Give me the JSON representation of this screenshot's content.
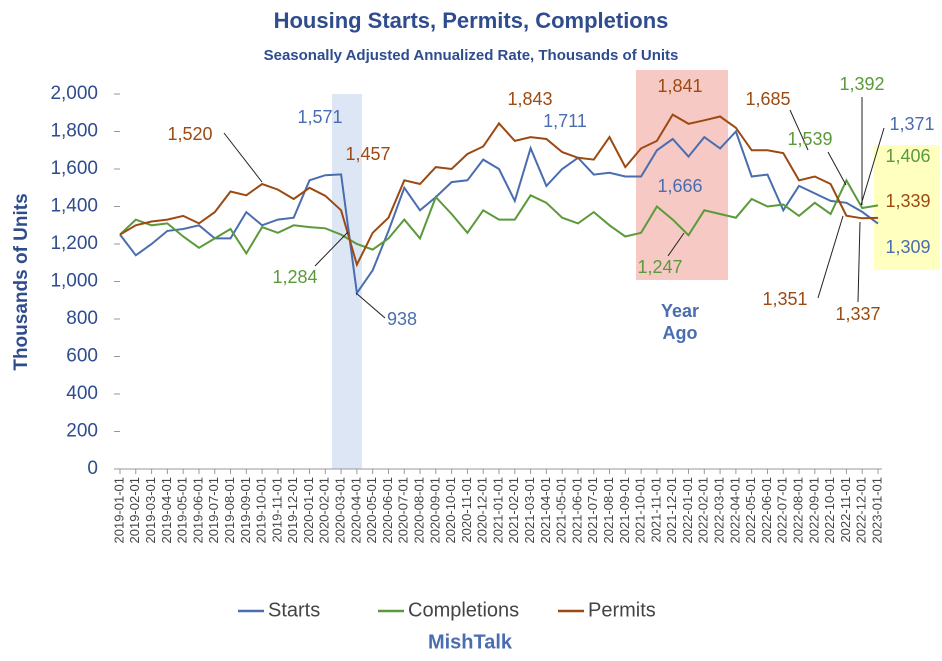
{
  "chart_data": {
    "type": "line",
    "title": "Housing Starts, Permits, Completions",
    "subtitle": "Seasonally Adjusted Annualized Rate, Thousands of Units",
    "y_label": "Thousands of Units",
    "footer": "MishTalk",
    "categories": [
      "2019-01-01",
      "2019-02-01",
      "2019-03-01",
      "2019-04-01",
      "2019-05-01",
      "2019-06-01",
      "2019-07-01",
      "2019-08-01",
      "2019-09-01",
      "2019-10-01",
      "2019-11-01",
      "2019-12-01",
      "2020-01-01",
      "2020-02-01",
      "2020-03-01",
      "2020-04-01",
      "2020-05-01",
      "2020-06-01",
      "2020-07-01",
      "2020-08-01",
      "2020-09-01",
      "2020-10-01",
      "2020-11-01",
      "2020-12-01",
      "2021-01-01",
      "2021-02-01",
      "2021-03-01",
      "2021-04-01",
      "2021-05-01",
      "2021-06-01",
      "2021-07-01",
      "2021-08-01",
      "2021-09-01",
      "2021-10-01",
      "2021-11-01",
      "2021-12-01",
      "2022-01-01",
      "2022-02-01",
      "2022-03-01",
      "2022-04-01",
      "2022-05-01",
      "2022-06-01",
      "2022-07-01",
      "2022-08-01",
      "2022-09-01",
      "2022-10-01",
      "2022-11-01",
      "2022-12-01",
      "2023-01-01"
    ],
    "series": [
      {
        "name": "Starts",
        "color": "#4a6db0",
        "values": [
          1250,
          1140,
          1200,
          1270,
          1280,
          1300,
          1230,
          1230,
          1370,
          1300,
          1330,
          1340,
          1540,
          1567,
          1571,
          938,
          1060,
          1270,
          1500,
          1380,
          1450,
          1530,
          1540,
          1650,
          1600,
          1430,
          1711,
          1510,
          1600,
          1660,
          1570,
          1580,
          1560,
          1560,
          1700,
          1760,
          1666,
          1770,
          1710,
          1800,
          1560,
          1570,
          1380,
          1510,
          1470,
          1430,
          1420,
          1371,
          1309
        ]
      },
      {
        "name": "Completions",
        "color": "#5b9a3a",
        "values": [
          1250,
          1330,
          1300,
          1310,
          1240,
          1180,
          1230,
          1280,
          1150,
          1290,
          1260,
          1300,
          1290,
          1284,
          1250,
          1200,
          1170,
          1230,
          1330,
          1230,
          1450,
          1360,
          1260,
          1380,
          1330,
          1330,
          1460,
          1420,
          1340,
          1310,
          1370,
          1300,
          1240,
          1260,
          1400,
          1330,
          1247,
          1380,
          1360,
          1340,
          1440,
          1400,
          1410,
          1350,
          1420,
          1360,
          1539,
          1392,
          1406
        ]
      },
      {
        "name": "Permits",
        "color": "#9c4a12",
        "values": [
          1250,
          1300,
          1320,
          1330,
          1350,
          1310,
          1370,
          1480,
          1460,
          1520,
          1490,
          1440,
          1500,
          1457,
          1380,
          1090,
          1260,
          1340,
          1540,
          1520,
          1610,
          1600,
          1680,
          1720,
          1843,
          1750,
          1770,
          1760,
          1690,
          1660,
          1650,
          1770,
          1610,
          1710,
          1750,
          1890,
          1841,
          1860,
          1880,
          1820,
          1700,
          1700,
          1685,
          1540,
          1560,
          1520,
          1351,
          1337,
          1339
        ]
      }
    ],
    "ylim": [
      0,
      2000
    ],
    "yticks": [
      0,
      200,
      400,
      600,
      800,
      {
        "value": 1000,
        "label": "1,000"
      },
      {
        "value": 1200,
        "label": "1,200"
      },
      {
        "value": 1400,
        "label": "1,400"
      },
      {
        "value": 1600,
        "label": "1,600"
      },
      {
        "value": 1800,
        "label": "1,800"
      },
      {
        "value": 2000,
        "label": "2,000"
      }
    ],
    "legend": "bottom",
    "annotations": [
      {
        "text": "1,571",
        "color": "#4a6db0"
      },
      {
        "text": "1,457",
        "color": "#9c4a12"
      },
      {
        "text": "1,520",
        "color": "#9c4a12"
      },
      {
        "text": "1,284",
        "color": "#5b9a3a"
      },
      {
        "text": "938",
        "color": "#4a6db0"
      },
      {
        "text": "1,843",
        "color": "#9c4a12"
      },
      {
        "text": "1,711",
        "color": "#4a6db0"
      },
      {
        "text": "1,841",
        "color": "#9c4a12"
      },
      {
        "text": "1,666",
        "color": "#4a6db0"
      },
      {
        "text": "1,247",
        "color": "#5b9a3a"
      },
      {
        "text": "1,685",
        "color": "#9c4a12"
      },
      {
        "text": "1,392",
        "color": "#5b9a3a"
      },
      {
        "text": "1,539",
        "color": "#5b9a3a"
      },
      {
        "text": "1,371",
        "color": "#4a6db0"
      },
      {
        "text": "1,406",
        "color": "#5b9a3a"
      },
      {
        "text": "1,339",
        "color": "#9c4a12"
      },
      {
        "text": "1,309",
        "color": "#4a6db0"
      },
      {
        "text": "1,351",
        "color": "#9c4a12"
      },
      {
        "text": "1,337",
        "color": "#9c4a12"
      }
    ],
    "region_label": [
      "Year",
      "Ago"
    ]
  }
}
